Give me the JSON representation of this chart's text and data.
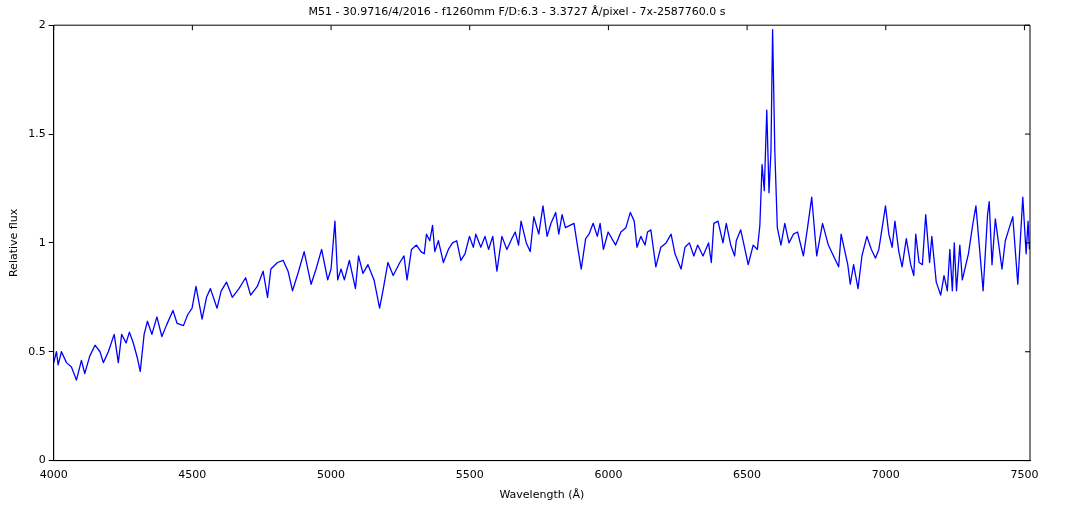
{
  "chart_data": {
    "type": "line",
    "title": "M51 - 30.9716/4/2016 - f1260mm F/D:6.3 - 3.3727 Å/pixel - 7x-2587760.0 s",
    "xlabel": "Wavelength (Å)",
    "ylabel": "Relative flux",
    "xlim": [
      4000,
      7520
    ],
    "xticks": [
      4000,
      4500,
      5000,
      5500,
      6000,
      6500,
      7000,
      7500
    ],
    "ylim": [
      0,
      2
    ],
    "yticks": [
      0,
      0.5,
      1,
      1.5,
      2
    ],
    "grid": false,
    "legend": false,
    "marker": "none",
    "line_style": "solid",
    "series": [
      {
        "color": "#0000ff",
        "x": [
          4000,
          4010,
          4016,
          4028,
          4046,
          4064,
          4082,
          4100,
          4112,
          4130,
          4149,
          4167,
          4179,
          4197,
          4218,
          4233,
          4245,
          4261,
          4273,
          4287,
          4302,
          4312,
          4326,
          4338,
          4354,
          4372,
          4390,
          4406,
          4430,
          4445,
          4468,
          4483,
          4499,
          4513,
          4535,
          4551,
          4565,
          4589,
          4604,
          4623,
          4644,
          4668,
          4692,
          4710,
          4734,
          4755,
          4771,
          4783,
          4807,
          4827,
          4845,
          4861,
          4883,
          4903,
          4928,
          4946,
          4966,
          4988,
          5000,
          5014,
          5024,
          5036,
          5048,
          5066,
          5088,
          5099,
          5115,
          5133,
          5155,
          5175,
          5187,
          5205,
          5224,
          5248,
          5263,
          5274,
          5290,
          5308,
          5324,
          5336,
          5344,
          5356,
          5366,
          5374,
          5387,
          5405,
          5423,
          5438,
          5453,
          5468,
          5483,
          5499,
          5513,
          5522,
          5540,
          5555,
          5568,
          5583,
          5598,
          5616,
          5634,
          5652,
          5664,
          5676,
          5685,
          5704,
          5718,
          5731,
          5749,
          5764,
          5779,
          5793,
          5810,
          5821,
          5833,
          5845,
          5876,
          5888,
          5902,
          5918,
          5930,
          5945,
          5960,
          5970,
          5982,
          5999,
          6026,
          6045,
          6063,
          6079,
          6093,
          6103,
          6117,
          6132,
          6141,
          6153,
          6171,
          6189,
          6208,
          6226,
          6240,
          6262,
          6276,
          6292,
          6308,
          6322,
          6341,
          6361,
          6371,
          6380,
          6395,
          6413,
          6425,
          6441,
          6455,
          6461,
          6477,
          6489,
          6504,
          6522,
          6537,
          6546,
          6554,
          6562,
          6571,
          6579,
          6586,
          6592,
          6600,
          6609,
          6622,
          6636,
          6651,
          6667,
          6682,
          6703,
          6718,
          6733,
          6751,
          6772,
          6793,
          6830,
          6839,
          6863,
          6872,
          6884,
          6900,
          6914,
          6932,
          6948,
          6963,
          6975,
          6999,
          7011,
          7023,
          7033,
          7047,
          7059,
          7074,
          7090,
          7101,
          7108,
          7120,
          7132,
          7144,
          7158,
          7166,
          7182,
          7198,
          7210,
          7222,
          7231,
          7240,
          7247,
          7255,
          7267,
          7276,
          7298,
          7313,
          7325,
          7337,
          7351,
          7367,
          7373,
          7383,
          7395,
          7419,
          7431,
          7443,
          7458,
          7476,
          7494,
          7506,
          7513,
          7518
        ],
        "values": [
          0.45,
          0.5,
          0.44,
          0.5,
          0.45,
          0.43,
          0.37,
          0.46,
          0.4,
          0.48,
          0.53,
          0.5,
          0.45,
          0.5,
          0.58,
          0.45,
          0.58,
          0.54,
          0.59,
          0.54,
          0.47,
          0.41,
          0.58,
          0.64,
          0.58,
          0.66,
          0.57,
          0.62,
          0.69,
          0.63,
          0.62,
          0.67,
          0.7,
          0.8,
          0.65,
          0.75,
          0.79,
          0.7,
          0.78,
          0.82,
          0.75,
          0.79,
          0.84,
          0.76,
          0.8,
          0.87,
          0.75,
          0.88,
          0.91,
          0.92,
          0.87,
          0.78,
          0.87,
          0.96,
          0.81,
          0.88,
          0.97,
          0.83,
          0.88,
          1.1,
          0.83,
          0.88,
          0.83,
          0.92,
          0.79,
          0.94,
          0.86,
          0.9,
          0.83,
          0.7,
          0.78,
          0.91,
          0.85,
          0.91,
          0.94,
          0.83,
          0.97,
          0.99,
          0.96,
          0.95,
          1.04,
          1.01,
          1.08,
          0.96,
          1.01,
          0.91,
          0.97,
          1.0,
          1.01,
          0.92,
          0.95,
          1.03,
          0.98,
          1.04,
          0.98,
          1.03,
          0.97,
          1.03,
          0.87,
          1.03,
          0.97,
          1.02,
          1.05,
          0.99,
          1.1,
          1.0,
          0.96,
          1.12,
          1.04,
          1.17,
          1.03,
          1.09,
          1.14,
          1.04,
          1.13,
          1.07,
          1.09,
          0.99,
          0.88,
          1.02,
          1.04,
          1.09,
          1.03,
          1.09,
          0.97,
          1.05,
          0.99,
          1.05,
          1.07,
          1.14,
          1.1,
          0.98,
          1.03,
          0.99,
          1.05,
          1.06,
          0.89,
          0.98,
          1.0,
          1.04,
          0.95,
          0.88,
          0.98,
          1.0,
          0.94,
          0.99,
          0.94,
          1.0,
          0.91,
          1.09,
          1.1,
          1.0,
          1.09,
          0.99,
          0.94,
          1.01,
          1.06,
          0.99,
          0.9,
          0.99,
          0.97,
          1.08,
          1.36,
          1.24,
          1.61,
          1.23,
          1.42,
          1.98,
          1.42,
          1.07,
          0.99,
          1.09,
          1.0,
          1.04,
          1.05,
          0.94,
          1.07,
          1.21,
          0.94,
          1.09,
          0.99,
          0.89,
          1.04,
          0.9,
          0.81,
          0.9,
          0.79,
          0.94,
          1.03,
          0.97,
          0.93,
          0.97,
          1.17,
          1.04,
          0.98,
          1.1,
          0.96,
          0.89,
          1.02,
          0.9,
          0.85,
          1.04,
          0.91,
          0.9,
          1.13,
          0.91,
          1.03,
          0.82,
          0.76,
          0.85,
          0.78,
          0.97,
          0.78,
          1.0,
          0.78,
          0.99,
          0.83,
          0.95,
          1.08,
          1.17,
          0.99,
          0.78,
          1.13,
          1.19,
          0.9,
          1.11,
          0.88,
          1.01,
          1.06,
          1.12,
          0.81,
          1.21,
          0.95,
          1.1,
          0.97
        ]
      }
    ]
  }
}
